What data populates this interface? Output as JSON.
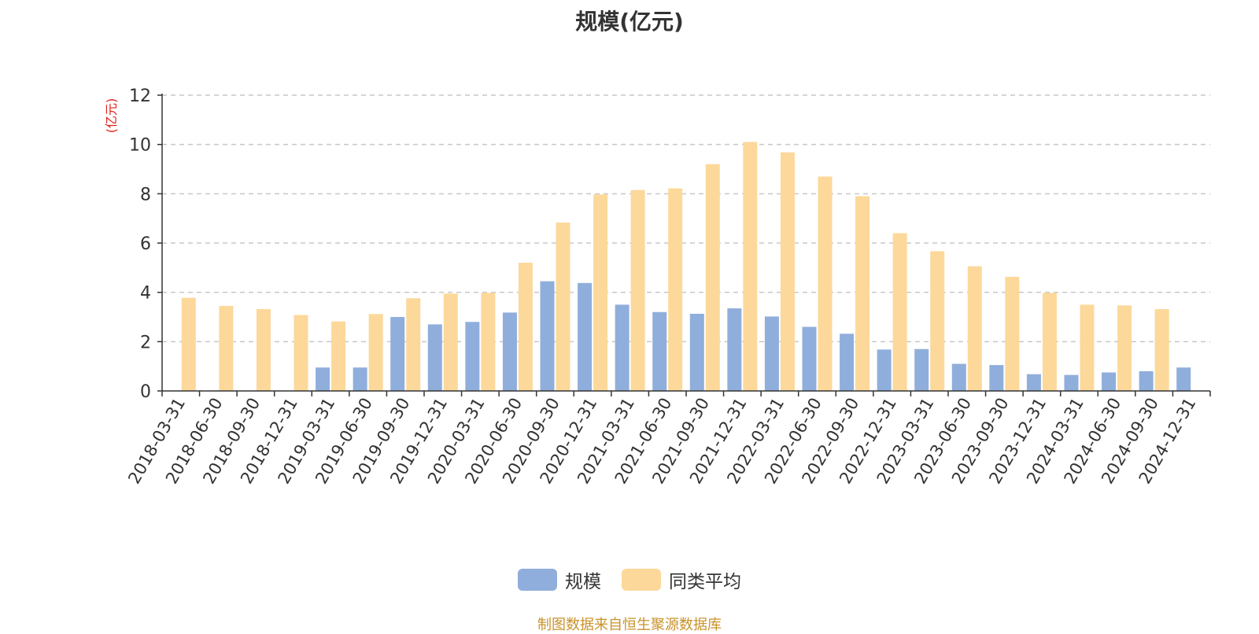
{
  "chart_data": {
    "type": "bar",
    "title": "规模(亿元)",
    "ylabel": "(亿元)",
    "xlabel": "",
    "ylim": [
      0,
      12
    ],
    "yticks": [
      0,
      2,
      4,
      6,
      8,
      10,
      12
    ],
    "grid": true,
    "legend_position": "bottom",
    "categories": [
      "2018-03-31",
      "2018-06-30",
      "2018-09-30",
      "2018-12-31",
      "2019-03-31",
      "2019-06-30",
      "2019-09-30",
      "2019-12-31",
      "2020-03-31",
      "2020-06-30",
      "2020-09-30",
      "2020-12-31",
      "2021-03-31",
      "2021-06-30",
      "2021-09-30",
      "2021-12-31",
      "2022-03-31",
      "2022-06-30",
      "2022-09-30",
      "2022-12-31",
      "2023-03-31",
      "2023-06-30",
      "2023-09-30",
      "2023-12-31",
      "2024-03-31",
      "2024-06-30",
      "2024-09-30",
      "2024-12-31"
    ],
    "series": [
      {
        "name": "规模",
        "color": "#8faedb",
        "values": [
          null,
          null,
          null,
          null,
          0.95,
          0.95,
          3.0,
          2.7,
          2.8,
          3.18,
          4.45,
          4.38,
          3.5,
          3.2,
          3.13,
          3.35,
          3.02,
          2.6,
          2.32,
          1.68,
          1.7,
          1.1,
          1.05,
          0.68,
          0.65,
          0.75,
          0.8,
          0.95
        ]
      },
      {
        "name": "同类平均",
        "color": "#fcd89a",
        "values": [
          3.78,
          3.45,
          3.32,
          3.08,
          2.82,
          3.12,
          3.76,
          3.95,
          3.98,
          5.2,
          6.83,
          7.97,
          8.15,
          8.22,
          9.2,
          10.1,
          9.68,
          8.7,
          7.9,
          6.4,
          5.67,
          5.06,
          4.63,
          3.98,
          3.5,
          3.47,
          3.32,
          null
        ]
      }
    ]
  },
  "source_text": "制图数据来自恒生聚源数据库"
}
